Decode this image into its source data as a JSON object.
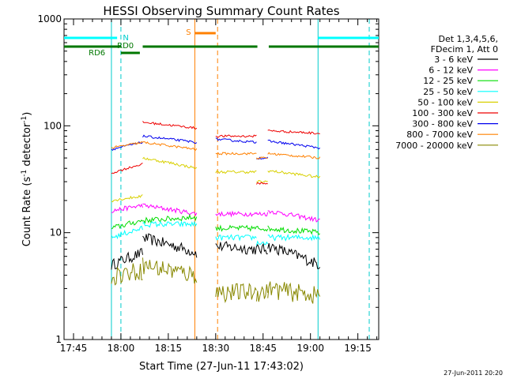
{
  "chart_data": {
    "type": "line",
    "title": "HESSI Observing Summary Count Rates",
    "xlabel": "Start Time (27-Jun-11 17:43:02)",
    "ylabel_main": "Count Rate (s",
    "ylabel_sup1": "-1",
    "ylabel_mid": " detector",
    "ylabel_sup2": "-1",
    "ylabel_end": ")",
    "yscale": "log",
    "ylim": [
      1,
      1000
    ],
    "xlim_minutes": [
      17.7,
      19.36
    ],
    "x_tick_labels": [
      "17:45",
      "18:00",
      "18:15",
      "18:30",
      "18:45",
      "19:00",
      "19:15"
    ],
    "x_tick_values": [
      17.75,
      18.0,
      18.25,
      18.5,
      18.75,
      19.0,
      19.25
    ],
    "y_tick_labels": [
      "1",
      "10",
      "100",
      "1000"
    ],
    "y_tick_values": [
      1,
      10,
      100,
      1000
    ],
    "legend": {
      "placement": "right",
      "header": [
        "Det 1,3,4,5,6,",
        "FDecim 1, Att 0"
      ],
      "entries": [
        {
          "label": "3 - 6 keV",
          "color": "#000000"
        },
        {
          "label": "6 - 12 keV",
          "color": "#ff00ff"
        },
        {
          "label": "12 - 25 keV",
          "color": "#00dd00"
        },
        {
          "label": "25 - 50 keV",
          "color": "#00ffff"
        },
        {
          "label": "50 - 100 keV",
          "color": "#d8d000"
        },
        {
          "label": "100 - 300 keV",
          "color": "#ee0000"
        },
        {
          "label": "300 - 800 keV",
          "color": "#0000ee"
        },
        {
          "label": "800 - 7000 keV",
          "color": "#ff8000"
        },
        {
          "label": "7000 - 20000 keV",
          "color": "#888800"
        }
      ]
    },
    "annotations": [
      {
        "text": "N",
        "color": "#00cccc"
      },
      {
        "text": "RD0",
        "color": "#007700"
      },
      {
        "text": "RD6",
        "color": "#007700"
      },
      {
        "text": "S",
        "color": "#ff8000"
      }
    ],
    "segments": [
      {
        "start": 17.95,
        "end": 18.115
      },
      {
        "start": 18.115,
        "end": 18.4
      },
      {
        "start": 18.5,
        "end": 18.715
      },
      {
        "start": 18.715,
        "end": 18.775
      },
      {
        "start": 18.775,
        "end": 19.05
      }
    ],
    "series": [
      {
        "name": "3 - 6 keV",
        "color": "#000000",
        "levels": [
          [
            5.0,
            6.5
          ],
          [
            9.0,
            6.5
          ],
          [
            7.5,
            7.0
          ],
          [
            7.0,
            7.0
          ],
          [
            7.5,
            5.0
          ]
        ],
        "noise": 0.12
      },
      {
        "name": "6 - 12 keV",
        "color": "#ff00ff",
        "levels": [
          [
            16,
            18
          ],
          [
            18,
            15
          ],
          [
            15,
            15
          ],
          [
            15,
            15
          ],
          [
            16,
            13
          ]
        ],
        "noise": 0.05
      },
      {
        "name": "12 - 25 keV",
        "color": "#00dd00",
        "levels": [
          [
            11,
            13
          ],
          [
            13,
            14
          ],
          [
            11,
            11
          ],
          [
            11,
            11
          ],
          [
            11,
            10
          ]
        ],
        "noise": 0.06
      },
      {
        "name": "25 - 50 keV",
        "color": "#00ffff",
        "levels": [
          [
            9,
            11
          ],
          [
            12,
            12
          ],
          [
            9,
            9
          ],
          [
            8,
            8
          ],
          [
            9,
            9
          ]
        ],
        "noise": 0.06
      },
      {
        "name": "50 - 100 keV",
        "color": "#d8d000",
        "levels": [
          [
            20,
            22
          ],
          [
            50,
            40
          ],
          [
            37,
            37
          ],
          [
            30,
            30
          ],
          [
            38,
            33
          ]
        ],
        "noise": 0.03
      },
      {
        "name": "100 - 300 keV",
        "color": "#ee0000",
        "levels": [
          [
            36,
            44
          ],
          [
            108,
            95
          ],
          [
            80,
            80
          ],
          [
            29,
            29
          ],
          [
            90,
            85
          ]
        ],
        "noise": 0.025
      },
      {
        "name": "300 - 800 keV",
        "color": "#0000ee",
        "levels": [
          [
            60,
            70
          ],
          [
            80,
            70
          ],
          [
            75,
            70
          ],
          [
            50,
            50
          ],
          [
            72,
            62
          ]
        ],
        "noise": 0.025
      },
      {
        "name": "800 - 7000 keV",
        "color": "#ff8000",
        "levels": [
          [
            62,
            70
          ],
          [
            70,
            60
          ],
          [
            55,
            55
          ],
          [
            50,
            50
          ],
          [
            55,
            50
          ]
        ],
        "noise": 0.025
      },
      {
        "name": "7000 - 20000 keV",
        "color": "#888800",
        "levels": [
          [
            4.0,
            4.5
          ],
          [
            5.0,
            4.0
          ],
          [
            2.8,
            2.8
          ],
          [
            2.8,
            2.8
          ],
          [
            3.0,
            2.6
          ]
        ],
        "noise": 0.2
      }
    ],
    "vertical_lines": [
      {
        "x": 17.95,
        "color": "#00cccc",
        "style": "solid"
      },
      {
        "x": 18.0,
        "color": "#00cccc",
        "style": "dashed"
      },
      {
        "x": 18.39,
        "color": "#ff8000",
        "style": "solid"
      },
      {
        "x": 18.51,
        "color": "#ff8000",
        "style": "dashed"
      },
      {
        "x": 19.04,
        "color": "#00cccc",
        "style": "solid"
      },
      {
        "x": 19.31,
        "color": "#00cccc",
        "style": "dashed"
      }
    ]
  },
  "timestamp": "27-Jun-2011 20:20"
}
